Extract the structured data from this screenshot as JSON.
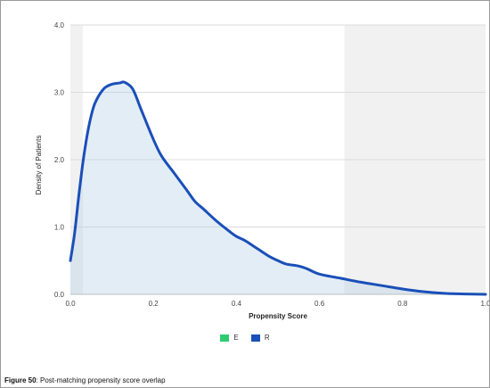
{
  "chart_data": {
    "type": "area",
    "xlabel": "Propensity Score",
    "ylabel": "Density of Patients",
    "xlim": [
      0.0,
      1.0
    ],
    "ylim": [
      0.0,
      4.0
    ],
    "x_ticks": [
      "0.0",
      "0.2",
      "0.4",
      "0.6",
      "0.8",
      "1.0"
    ],
    "y_ticks": [
      "0.0",
      "1.0",
      "2.0",
      "3.0",
      "4.0"
    ],
    "grid": true,
    "legend": {
      "placement": "bottom-center"
    },
    "shaded_regions": [
      {
        "x_start": 0.0,
        "x_end": 0.03
      },
      {
        "x_start": 0.66,
        "x_end": 1.0
      }
    ],
    "series": [
      {
        "name": "E",
        "color": "#2ecc71",
        "x": [],
        "values": []
      },
      {
        "name": "R",
        "color": "#1a4fb8",
        "x": [
          0.0,
          0.01,
          0.02,
          0.03,
          0.04,
          0.05,
          0.06,
          0.08,
          0.1,
          0.12,
          0.13,
          0.15,
          0.17,
          0.2,
          0.22,
          0.25,
          0.28,
          0.3,
          0.32,
          0.35,
          0.38,
          0.4,
          0.42,
          0.45,
          0.48,
          0.5,
          0.52,
          0.55,
          0.57,
          0.6,
          0.65,
          0.7,
          0.75,
          0.8,
          0.85,
          0.9,
          0.95,
          1.0
        ],
        "values": [
          0.5,
          0.9,
          1.45,
          1.95,
          2.35,
          2.65,
          2.85,
          3.05,
          3.12,
          3.14,
          3.15,
          3.05,
          2.75,
          2.3,
          2.05,
          1.8,
          1.55,
          1.38,
          1.27,
          1.1,
          0.95,
          0.86,
          0.8,
          0.68,
          0.56,
          0.5,
          0.45,
          0.42,
          0.38,
          0.3,
          0.24,
          0.18,
          0.13,
          0.08,
          0.04,
          0.015,
          0.005,
          0.0
        ]
      }
    ]
  },
  "legend_items": [
    {
      "label": "E",
      "color": "#2ecc71"
    },
    {
      "label": "R",
      "color": "#1a4fb8"
    }
  ],
  "caption": {
    "label": "Figure 50",
    "text": ": Post-matching propensity score overlap"
  }
}
